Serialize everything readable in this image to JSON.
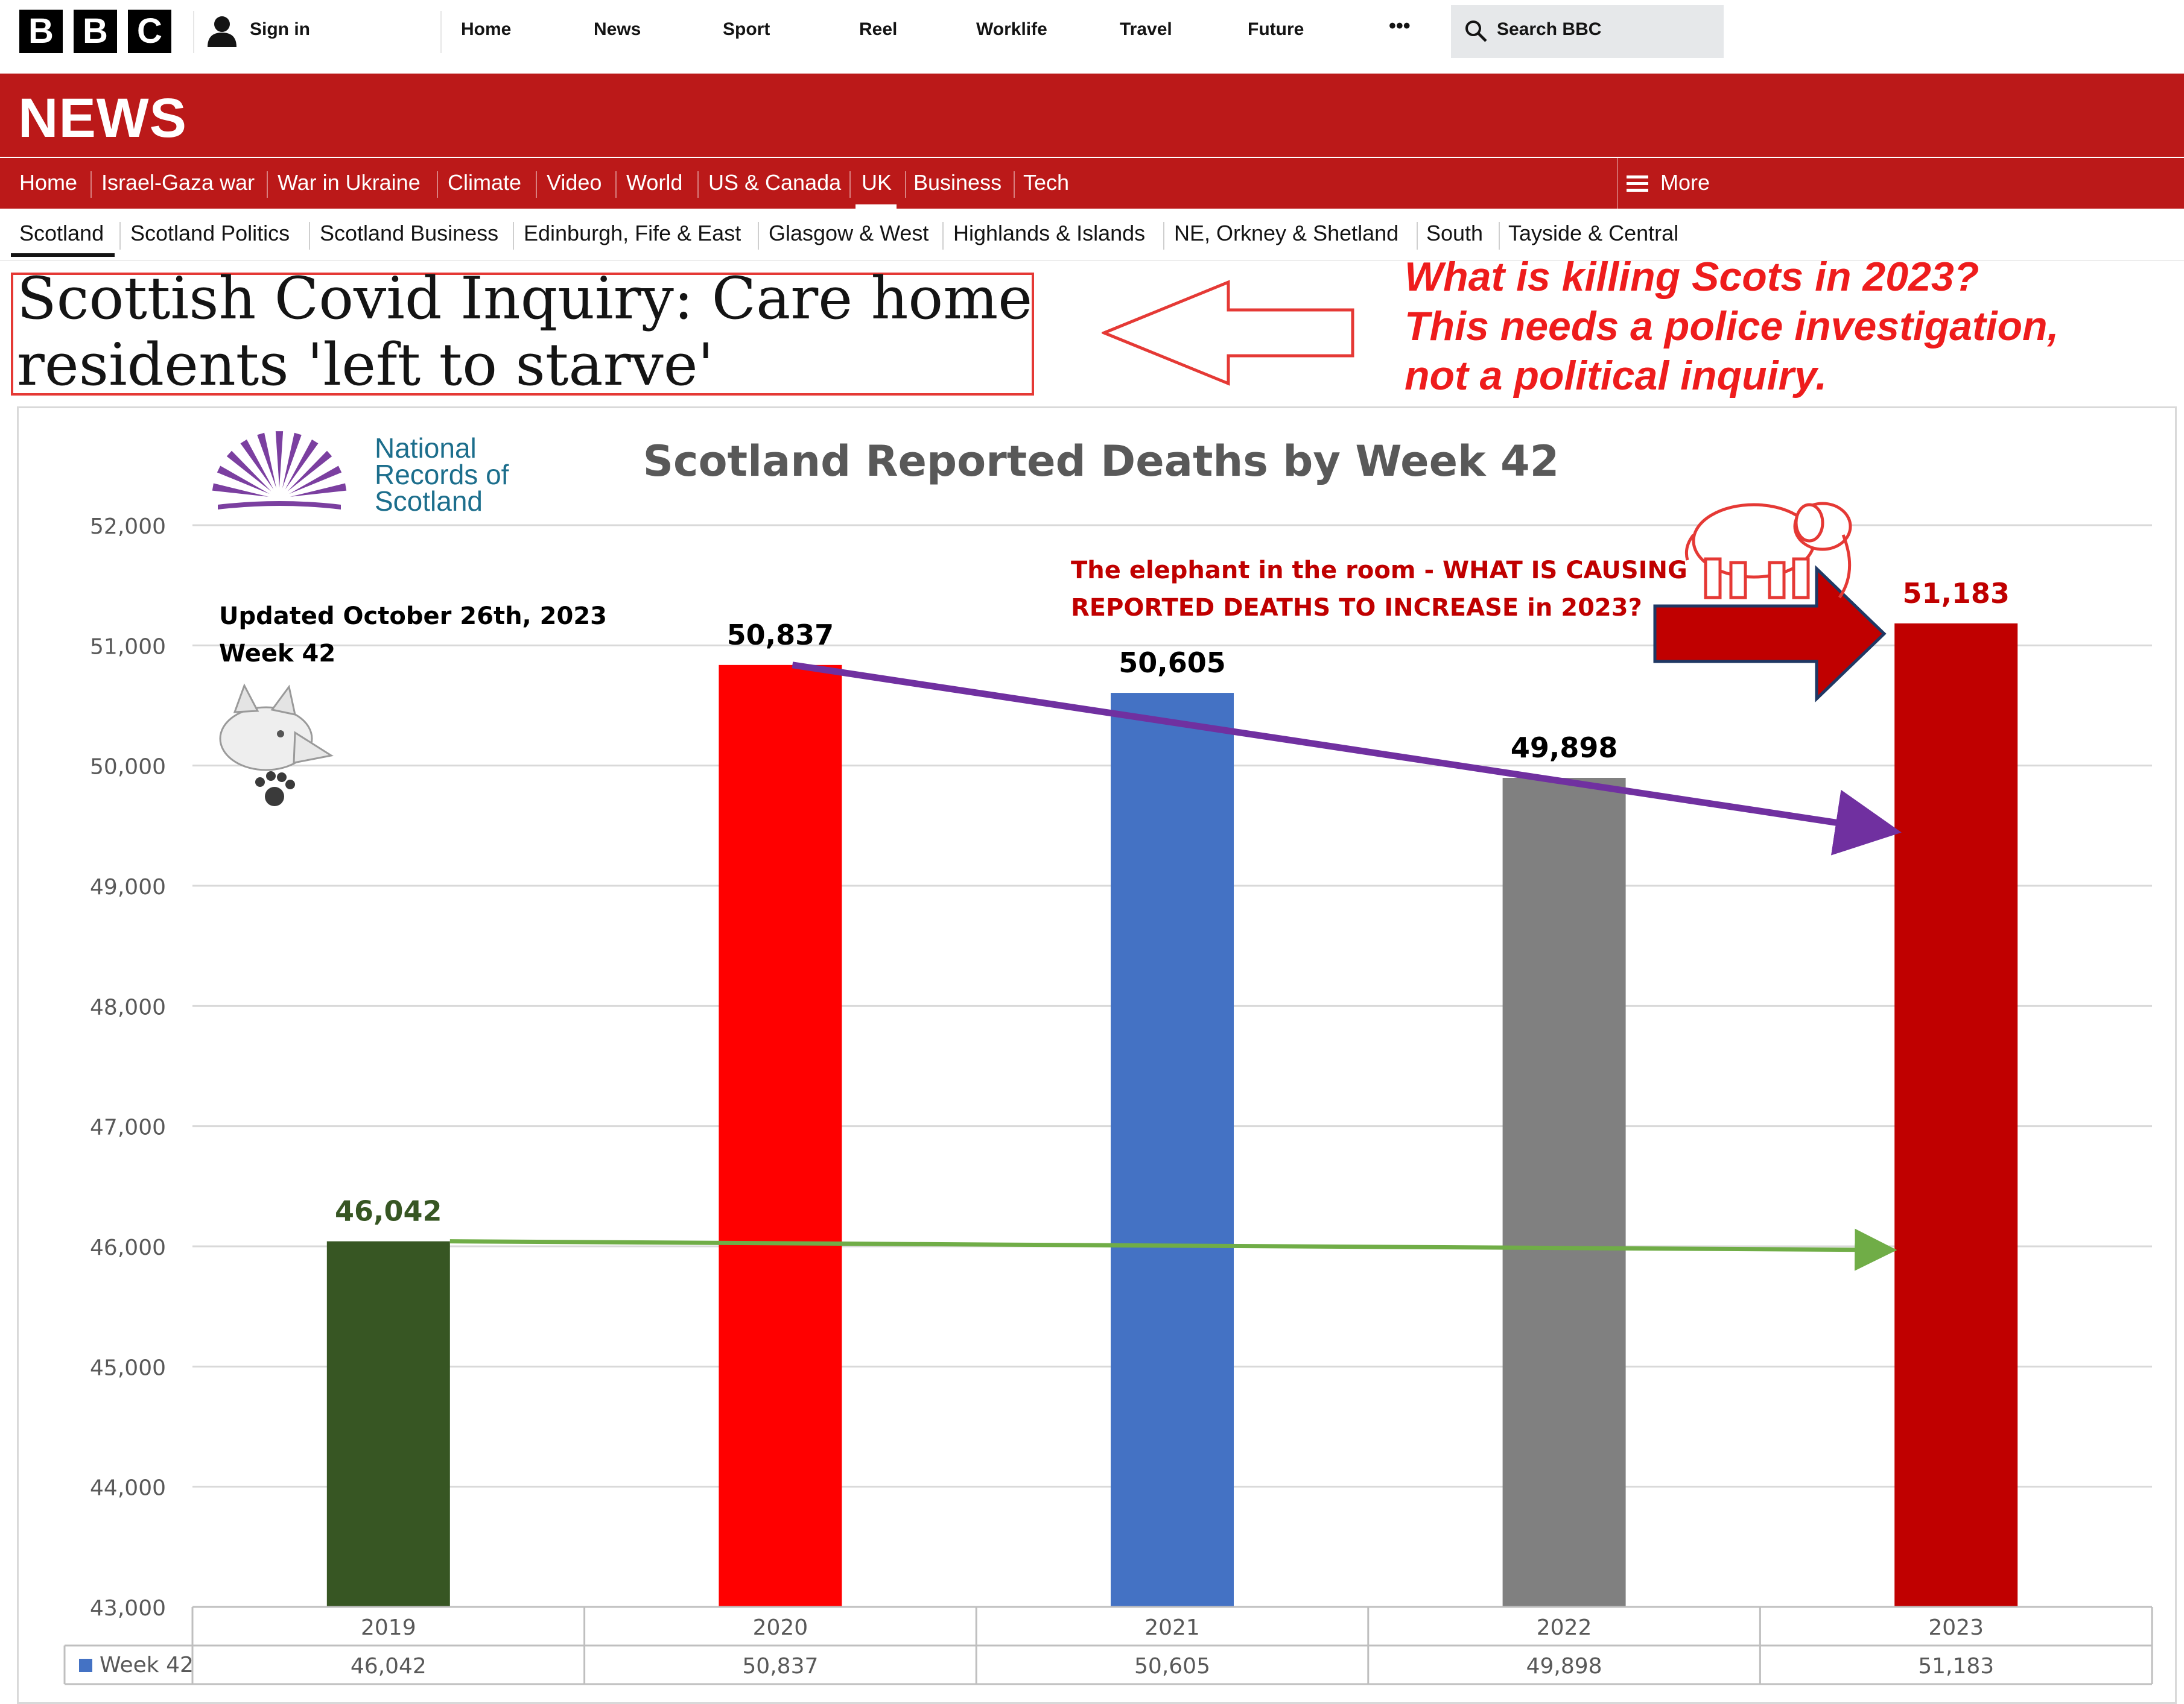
{
  "header": {
    "logo_letters": [
      "B",
      "B",
      "C"
    ],
    "sign_in": "Sign in",
    "nav": [
      "Home",
      "News",
      "Sport",
      "Reel",
      "Worklife",
      "Travel",
      "Future"
    ],
    "more_dots": "•••",
    "search_placeholder": "Search BBC"
  },
  "news_band": {
    "title": "NEWS",
    "nav": [
      "Home",
      "Israel-Gaza war",
      "War in Ukraine",
      "Climate",
      "Video",
      "World",
      "US & Canada",
      "UK",
      "Business",
      "Tech"
    ],
    "active": "UK",
    "more": "More"
  },
  "region_nav": {
    "items": [
      "Scotland",
      "Scotland Politics",
      "Scotland Business",
      "Edinburgh, Fife & East",
      "Glasgow & West",
      "Highlands & Islands",
      "NE, Orkney & Shetland",
      "South",
      "Tayside & Central"
    ],
    "active": "Scotland"
  },
  "article": {
    "headline_line1": "Scottish Covid Inquiry: Care home",
    "headline_line2": "residents 'left to starve'"
  },
  "commentary": {
    "line1": "What is killing Scots in 2023?",
    "line2": "This needs a police investigation,",
    "line3": "not a political inquiry."
  },
  "logo": {
    "line1": "National",
    "line2": "Records of",
    "line3": "Scotland"
  },
  "chart_data": {
    "type": "bar",
    "title": "Scotland Reported Deaths by Week 42",
    "categories": [
      "2019",
      "2020",
      "2021",
      "2022",
      "2023"
    ],
    "series": [
      {
        "name": "Week 42",
        "values": [
          46042,
          50837,
          50605,
          49898,
          51183
        ]
      }
    ],
    "value_labels": [
      "46,042",
      "50,837",
      "50,605",
      "49,898",
      "51,183"
    ],
    "bar_colors": [
      "#375623",
      "#ff0000",
      "#4472c4",
      "#808080",
      "#c00000"
    ],
    "label_colors": [
      "#375623",
      "#000000",
      "#000000",
      "#000000",
      "#c00000"
    ],
    "ylim": [
      43000,
      52000
    ],
    "yticks": [
      43000,
      44000,
      45000,
      46000,
      47000,
      48000,
      49000,
      50000,
      51000,
      52000
    ],
    "ytick_labels": [
      "43,000",
      "44,000",
      "45,000",
      "46,000",
      "47,000",
      "48,000",
      "49,000",
      "50,000",
      "51,000",
      "52,000"
    ],
    "grid": true,
    "data_table": true,
    "legend_key_color": "#4472c4",
    "annotations": {
      "updated_line1": "Updated October 26th, 2023",
      "updated_line2": "Week 42",
      "elephant_line1": "The elephant in the room - WHAT IS CAUSING",
      "elephant_line2": "REPORTED DEATHS TO INCREASE in 2023?"
    },
    "trend_lines": [
      {
        "name": "purple-trend",
        "color": "#7030a0",
        "from": {
          "x": "2020",
          "y": 50837
        },
        "to_value": 49460
      },
      {
        "name": "green-trend",
        "color": "#70ad47",
        "from": {
          "x": "2019",
          "y": 46042
        },
        "to_value": 45970
      }
    ]
  }
}
